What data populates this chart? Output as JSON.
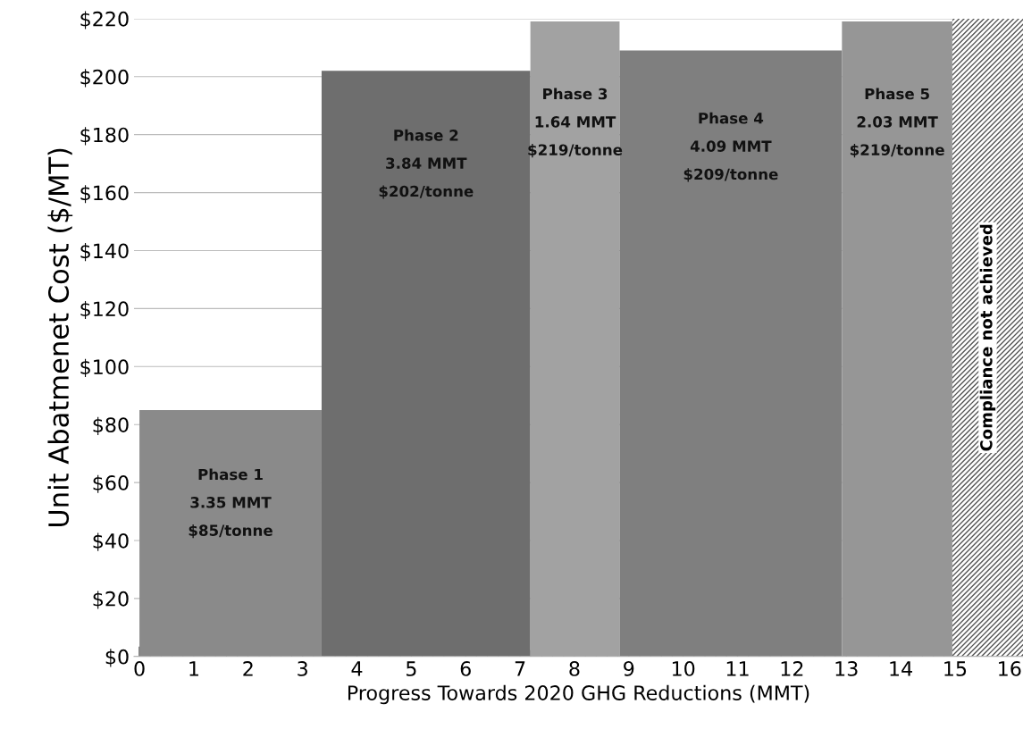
{
  "chart_data": {
    "type": "histogram",
    "xlabel": "Progress Towards 2020 GHG Reductions (MMT)",
    "ylabel": "Unit Abatmenet Cost ($/MT)",
    "bins": [
      0,
      3.35,
      7.19,
      8.83,
      12.92,
      14.95
    ],
    "values": [
      85,
      202,
      219,
      209,
      219
    ],
    "colors": [
      "#8a8a8a",
      "#6e6e6e",
      "#a2a2a2",
      "#7f7f7f",
      "#969696"
    ],
    "xlim": [
      -0.1,
      16.25
    ],
    "xticks": [
      0,
      1,
      2,
      3,
      4,
      5,
      6,
      7,
      8,
      9,
      10,
      11,
      12,
      13,
      14,
      15,
      16
    ],
    "ylim": [
      0,
      220
    ],
    "yticks": [
      {
        "value": 0,
        "label": "$0"
      },
      {
        "value": 20,
        "label": "$20"
      },
      {
        "value": 40,
        "label": "$40"
      },
      {
        "value": 60,
        "label": "$60"
      },
      {
        "value": 80,
        "label": "$80"
      },
      {
        "value": 100,
        "label": "$100"
      },
      {
        "value": 120,
        "label": "$120"
      },
      {
        "value": 140,
        "label": "$140"
      },
      {
        "value": 160,
        "label": "$160"
      },
      {
        "value": 180,
        "label": "$180"
      },
      {
        "value": 200,
        "label": "$200"
      },
      {
        "value": 220,
        "label": "$220"
      }
    ],
    "grid": "y",
    "bands": [
      {
        "axis": "x",
        "from": 14.95,
        "to": 16.25,
        "label": "Compliance not achieved",
        "color": "#ffffff"
      }
    ],
    "annotations": [
      "Phase 1\n3.35 MMT\n$85/tonne",
      "Phase 2\n3.84 MMT\n$202/tonne",
      "Phase 3\n1.64 MMT\n$219/tonne",
      "Phase 4\n4.09 MMT\n$209/tonne",
      "Phase 5\n2.03 MMT\n$219/tonne"
    ]
  }
}
